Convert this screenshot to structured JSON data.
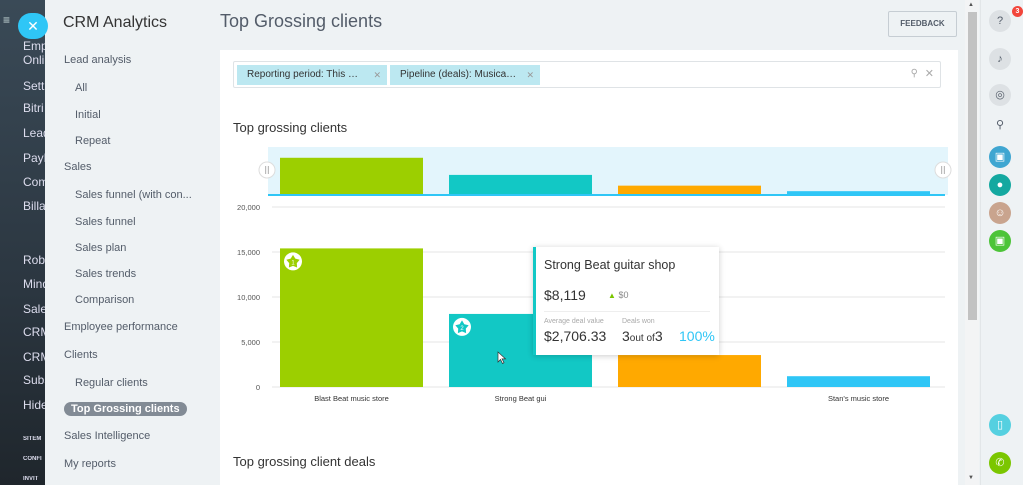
{
  "background_sidebar": {
    "items": [
      "Emp",
      "Onli",
      "Setti",
      "Bitri",
      "Lead",
      "PayP",
      "Com",
      "Billa",
      "Robo",
      "Mind",
      "Sales",
      "CRM",
      "CRM",
      "Subs",
      "Hide"
    ],
    "small_items": [
      "SITEM",
      "CONFI",
      "INVIT"
    ]
  },
  "menu": {
    "title": "CRM Analytics",
    "items": [
      {
        "label": "Lead analysis",
        "level": 1
      },
      {
        "label": "All",
        "level": 2
      },
      {
        "label": "Initial",
        "level": 2
      },
      {
        "label": "Repeat",
        "level": 2
      },
      {
        "label": "Sales",
        "level": 1
      },
      {
        "label": "Sales funnel (with con...",
        "level": 2
      },
      {
        "label": "Sales funnel",
        "level": 2
      },
      {
        "label": "Sales plan",
        "level": 2
      },
      {
        "label": "Sales trends",
        "level": 2
      },
      {
        "label": "Comparison",
        "level": 2
      },
      {
        "label": "Employee performance",
        "level": 1
      },
      {
        "label": "Clients",
        "level": 1
      },
      {
        "label": "Regular clients",
        "level": 2
      },
      {
        "label": "Top Grossing clients",
        "level": 1,
        "active": true
      },
      {
        "label": "Sales Intelligence",
        "level": 1
      },
      {
        "label": "My reports",
        "level": 1
      }
    ]
  },
  "header": {
    "title": "Top Grossing clients",
    "feedback_label": "FEEDBACK"
  },
  "filter": {
    "chips": [
      "Reporting period: This w…",
      "Pipeline (deals): Musical…"
    ]
  },
  "sections": {
    "chart_title": "Top grossing clients",
    "deals_title": "Top grossing client deals"
  },
  "chart_data": {
    "type": "bar",
    "categories": [
      "Blast Beat music store",
      "Strong Beat guitar shop",
      "",
      "Stan's music store"
    ],
    "category_labels_visible": [
      "Blast Beat music store",
      "Strong Beat gui",
      "",
      "Stan's music store"
    ],
    "values": [
      15400,
      8119,
      3550,
      1200
    ],
    "colors": [
      "#9ccf00",
      "#12c8c5",
      "#ffa900",
      "#2fc6f6"
    ],
    "ranks": [
      "1",
      "2"
    ],
    "ylim": [
      0,
      20000
    ],
    "yticks": [
      "0",
      "5,000",
      "10,000",
      "15,000",
      "20,000"
    ],
    "grid": true,
    "navigator": true
  },
  "tooltip": {
    "name": "Strong Beat guitar shop",
    "value": "$8,119",
    "delta": "$0",
    "avg_label": "Average deal value",
    "avg_value": "$2,706.33",
    "won_label": "Deals won",
    "won": "3",
    "won_of": "out of",
    "won_total": "3",
    "percent": "100%"
  },
  "right_bar": {
    "help_badge": "3"
  },
  "colors": {
    "accent": "#2fc6f6",
    "active_menu": "#828b95"
  }
}
